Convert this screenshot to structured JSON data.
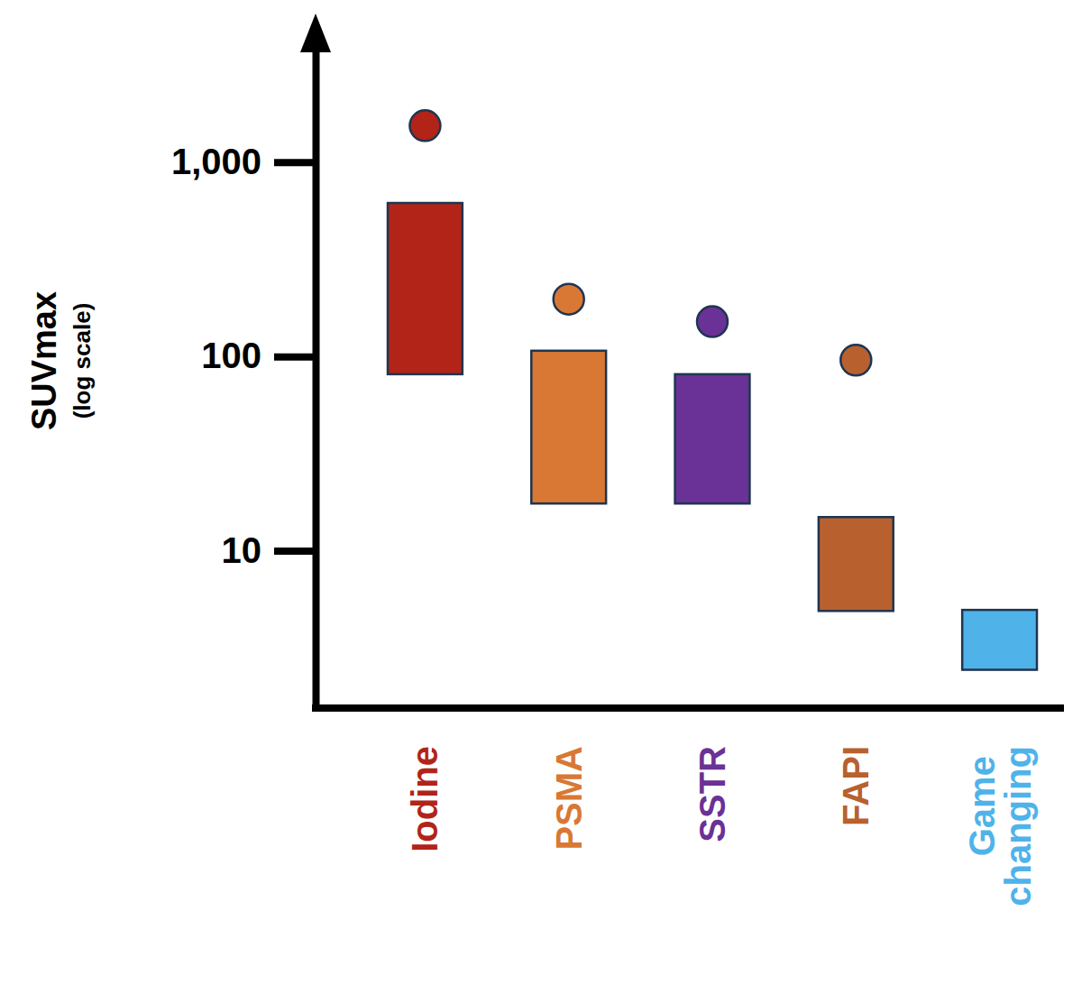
{
  "chart_data": {
    "type": "range_bar",
    "ylabel": [
      "SUVmax",
      "(log scale)"
    ],
    "categories": [
      "Iodine",
      "PSMA",
      "SSTR",
      "FAPI",
      "Game changing"
    ],
    "values": [
      [
        81,
        616
      ],
      [
        17.5,
        107
      ],
      [
        17.5,
        81
      ],
      [
        4.9,
        14.9
      ],
      [
        2.44,
        4.96
      ]
    ],
    "points": [
      1540,
      197,
      151,
      95.7,
      null
    ],
    "colors": [
      "#b22418",
      "#d97834",
      "#6a3196",
      "#b8612f",
      "#4fb3ea"
    ],
    "log": "y",
    "ylim": [
      1.55,
      4000
    ],
    "yticks": [
      10,
      100,
      {
        "value": 1000,
        "label": "1,000"
      }
    ]
  }
}
